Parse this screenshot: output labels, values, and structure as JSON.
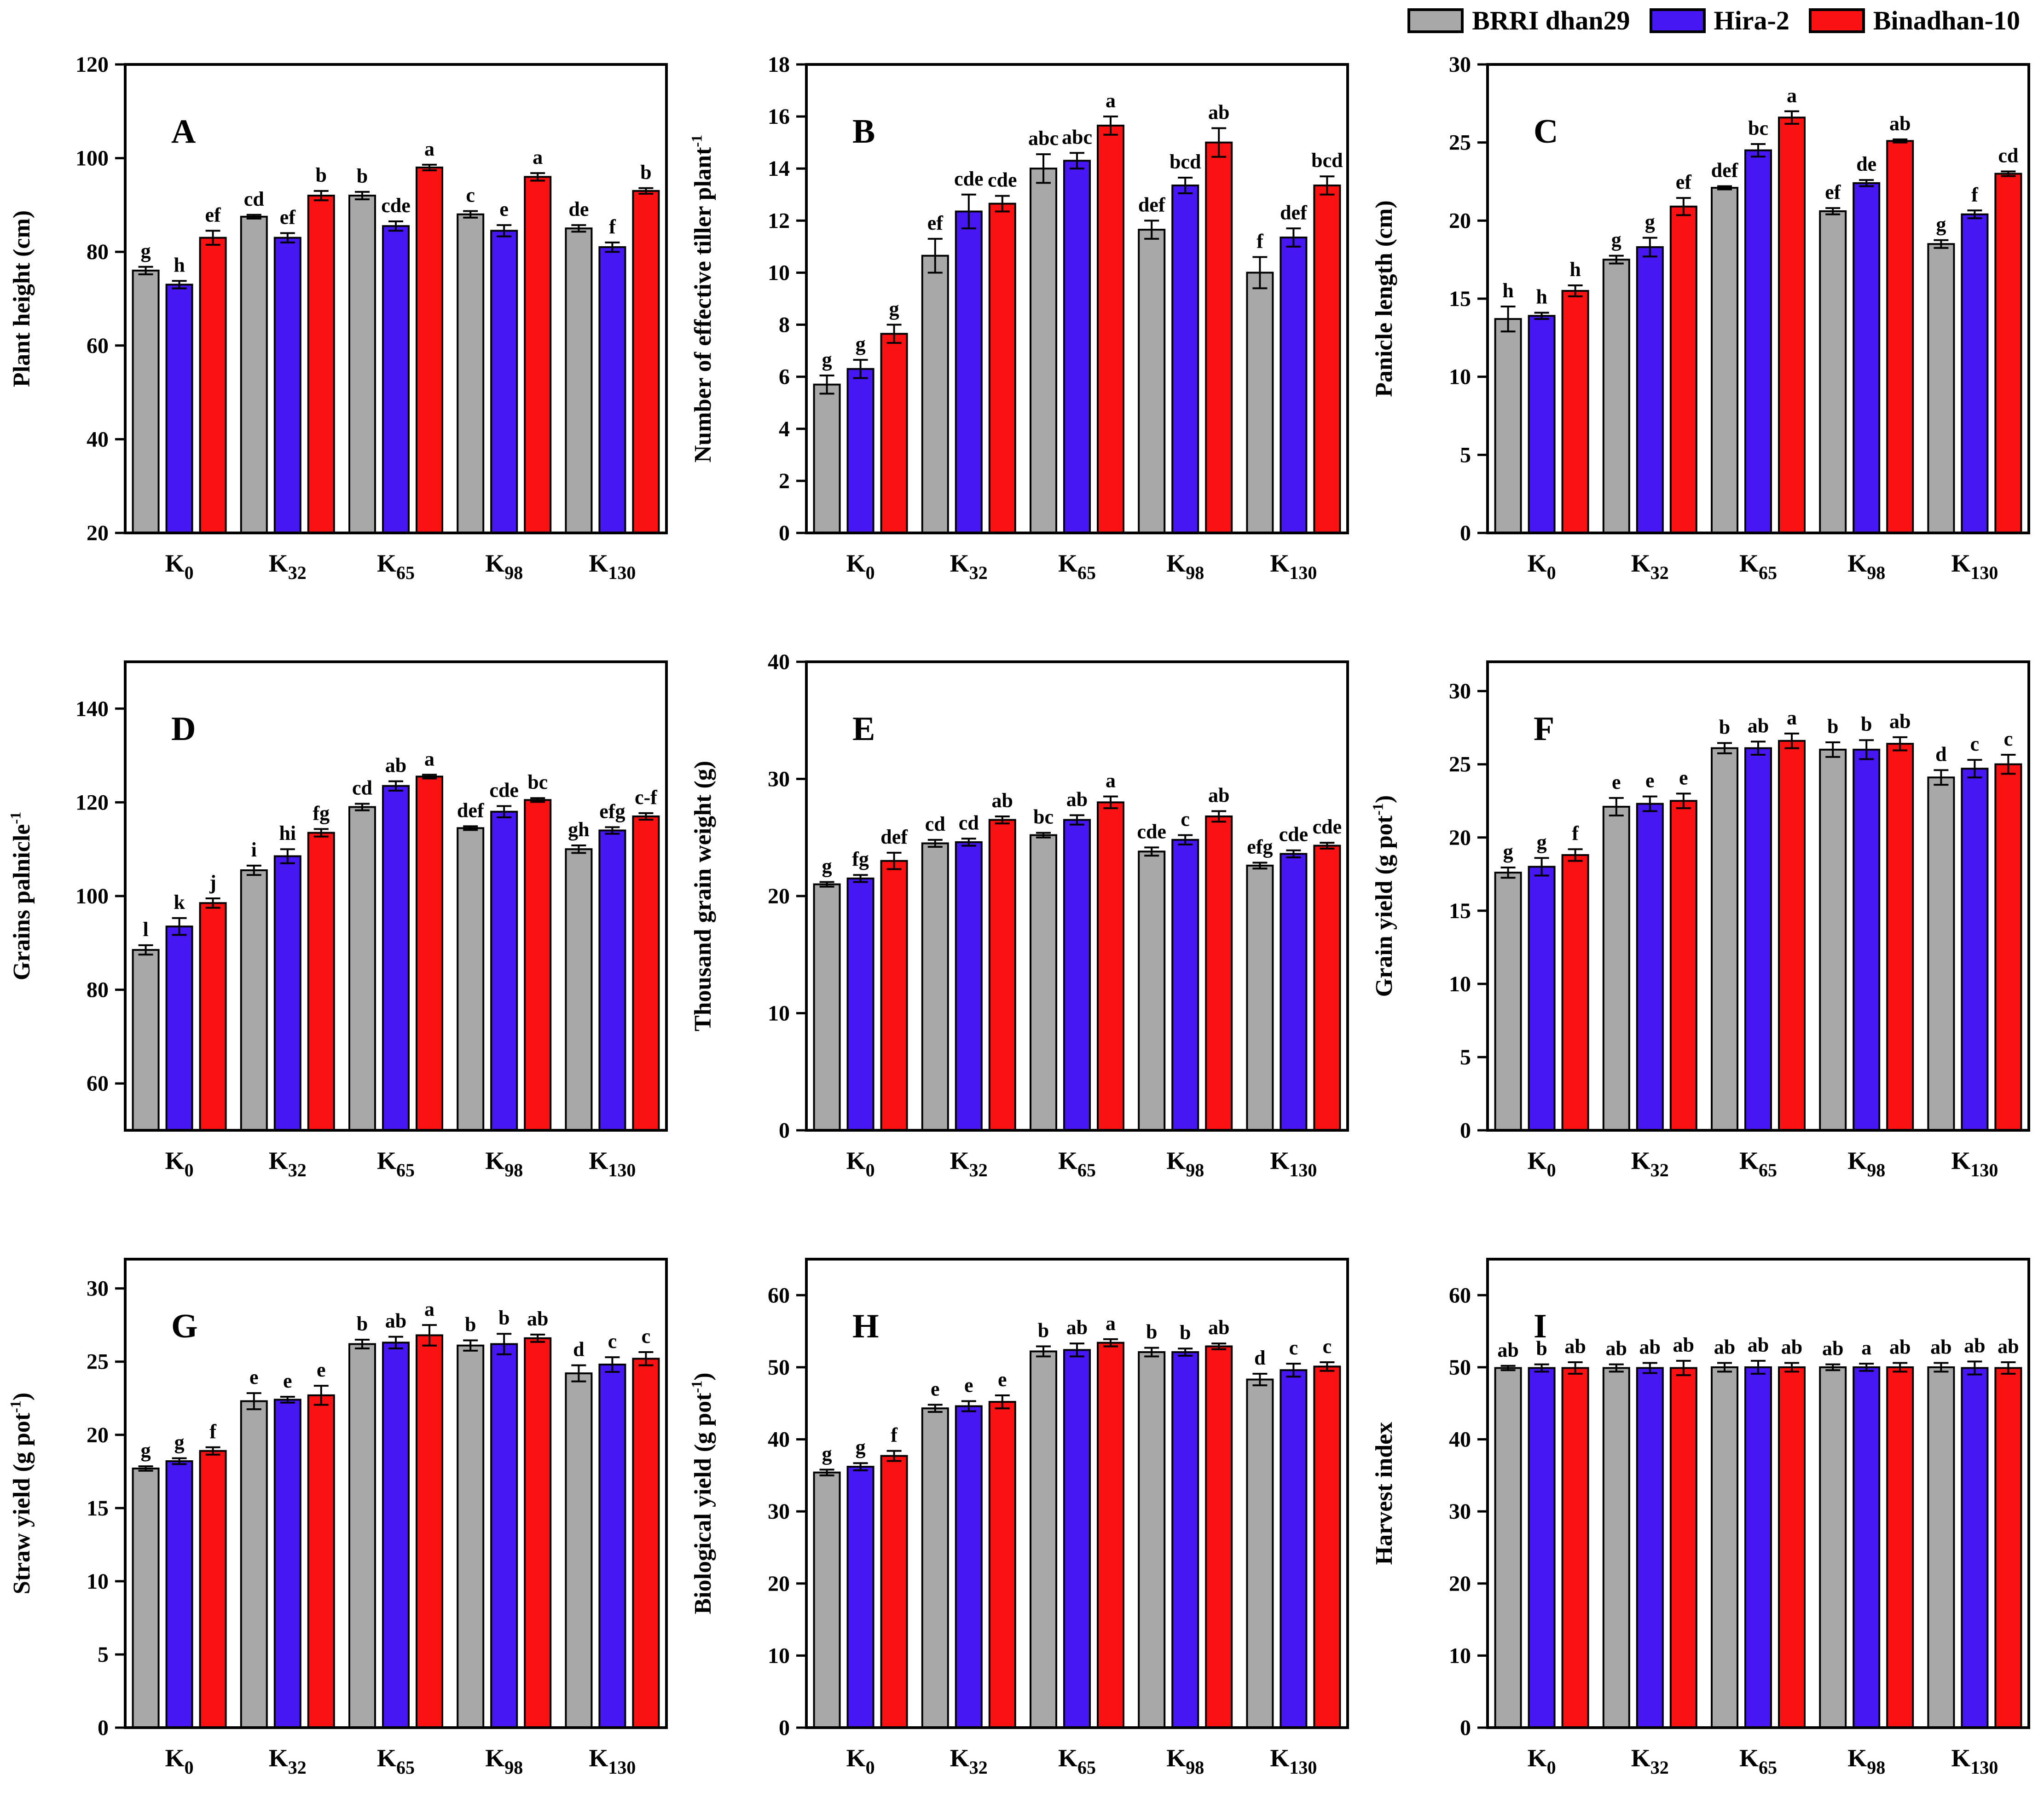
{
  "figure": {
    "legend": [
      {
        "label": "BRRI dhan29",
        "color": "#a8a8a8"
      },
      {
        "label": "Hira-2",
        "color": "#4617f2"
      },
      {
        "label": "Binadhan-10",
        "color": "#fa1111"
      }
    ],
    "legend_position": "top-right",
    "x_categories_display": [
      "K0",
      "K32",
      "K65",
      "K98",
      "K130"
    ]
  },
  "chart_data": [
    {
      "panel": "A",
      "type": "bar",
      "ylabel": "Plant height (cm)",
      "ylim": [
        20,
        120
      ],
      "yticks": [
        20,
        40,
        60,
        80,
        100,
        120
      ],
      "categories": [
        "K0",
        "K32",
        "K65",
        "K98",
        "K130"
      ],
      "series": [
        {
          "name": "BRRI dhan29",
          "color": "#a8a8a8",
          "values": [
            76,
            87.5,
            92,
            88,
            85
          ],
          "errors": [
            0.8,
            0.4,
            0.8,
            0.7,
            0.7
          ],
          "letters": [
            "g",
            "cd",
            "b",
            "c",
            "de"
          ]
        },
        {
          "name": "Hira-2",
          "color": "#4617f2",
          "values": [
            73,
            83,
            85.5,
            84.5,
            81
          ],
          "errors": [
            0.8,
            1.0,
            1.0,
            1.2,
            1.0
          ],
          "letters": [
            "h",
            "ef",
            "cde",
            "e",
            "f"
          ]
        },
        {
          "name": "Binadhan-10",
          "color": "#fa1111",
          "values": [
            83,
            92,
            98,
            96,
            93
          ],
          "errors": [
            1.5,
            1.0,
            0.6,
            0.8,
            0.6
          ],
          "letters": [
            "ef",
            "b",
            "a",
            "a",
            "b"
          ]
        }
      ]
    },
    {
      "panel": "B",
      "type": "bar",
      "ylabel": "Number of effective tiller plant^{-1}",
      "ylim": [
        0,
        18
      ],
      "yticks": [
        0,
        2,
        4,
        6,
        8,
        10,
        12,
        14,
        16,
        18
      ],
      "categories": [
        "K0",
        "K32",
        "K65",
        "K98",
        "K130"
      ],
      "series": [
        {
          "name": "BRRI dhan29",
          "color": "#a8a8a8",
          "values": [
            5.7,
            10.65,
            14.0,
            11.65,
            10.0
          ],
          "errors": [
            0.35,
            0.65,
            0.55,
            0.35,
            0.6
          ],
          "letters": [
            "g",
            "ef",
            "abc",
            "def",
            "f"
          ]
        },
        {
          "name": "Hira-2",
          "color": "#4617f2",
          "values": [
            6.3,
            12.35,
            14.3,
            13.35,
            11.35
          ],
          "errors": [
            0.35,
            0.65,
            0.3,
            0.3,
            0.35
          ],
          "letters": [
            "g",
            "cde",
            "abc",
            "bcd",
            "def"
          ]
        },
        {
          "name": "Binadhan-10",
          "color": "#fa1111",
          "values": [
            7.65,
            12.65,
            15.65,
            15.0,
            13.35
          ],
          "errors": [
            0.35,
            0.3,
            0.35,
            0.55,
            0.35
          ],
          "letters": [
            "g",
            "cde",
            "a",
            "ab",
            "bcd"
          ]
        }
      ]
    },
    {
      "panel": "C",
      "type": "bar",
      "ylabel": "Panicle length (cm)",
      "ylim": [
        0,
        30
      ],
      "yticks": [
        0,
        5,
        10,
        15,
        20,
        25,
        30
      ],
      "categories": [
        "K0",
        "K32",
        "K65",
        "K98",
        "K130"
      ],
      "series": [
        {
          "name": "BRRI dhan29",
          "color": "#a8a8a8",
          "values": [
            13.7,
            17.5,
            22.1,
            20.6,
            18.5
          ],
          "errors": [
            0.8,
            0.25,
            0.1,
            0.2,
            0.25
          ],
          "letters": [
            "h",
            "g",
            "def",
            "ef",
            "g"
          ]
        },
        {
          "name": "Hira-2",
          "color": "#4617f2",
          "values": [
            13.9,
            18.3,
            24.5,
            22.4,
            20.4
          ],
          "errors": [
            0.2,
            0.6,
            0.4,
            0.2,
            0.25
          ],
          "letters": [
            "h",
            "g",
            "bc",
            "de",
            "f"
          ]
        },
        {
          "name": "Binadhan-10",
          "color": "#fa1111",
          "values": [
            15.5,
            20.9,
            26.6,
            25.1,
            23.0
          ],
          "errors": [
            0.35,
            0.55,
            0.4,
            0.1,
            0.15
          ],
          "letters": [
            "h",
            "ef",
            "a",
            "ab",
            "cd"
          ]
        }
      ]
    },
    {
      "panel": "D",
      "type": "bar",
      "ylabel": "Grains palnicle^{-1}",
      "ylim": [
        50,
        150
      ],
      "yticks": [
        60,
        80,
        100,
        120,
        140
      ],
      "categories": [
        "K0",
        "K32",
        "K65",
        "K98",
        "K130"
      ],
      "series": [
        {
          "name": "BRRI dhan29",
          "color": "#a8a8a8",
          "values": [
            88.5,
            105.5,
            119,
            114.5,
            110
          ],
          "errors": [
            1.0,
            1.0,
            0.7,
            0.4,
            0.8
          ],
          "letters": [
            "l",
            "i",
            "cd",
            "def",
            "gh"
          ]
        },
        {
          "name": "Hira-2",
          "color": "#4617f2",
          "values": [
            93.5,
            108.5,
            123.5,
            118,
            114
          ],
          "errors": [
            1.8,
            1.5,
            1.0,
            1.2,
            0.7
          ],
          "letters": [
            "k",
            "hi",
            "ab",
            "cde",
            "efg"
          ]
        },
        {
          "name": "Binadhan-10",
          "color": "#fa1111",
          "values": [
            98.5,
            113.5,
            125.5,
            120.5,
            117
          ],
          "errors": [
            1.0,
            0.8,
            0.4,
            0.4,
            0.7
          ],
          "letters": [
            "j",
            "fg",
            "a",
            "bc",
            "c-f"
          ]
        }
      ]
    },
    {
      "panel": "E",
      "type": "bar",
      "ylabel": "Thousand grain weight (g)",
      "ylim": [
        0,
        40
      ],
      "yticks": [
        0,
        10,
        20,
        30,
        40
      ],
      "categories": [
        "K0",
        "K32",
        "K65",
        "K98",
        "K130"
      ],
      "series": [
        {
          "name": "BRRI dhan29",
          "color": "#a8a8a8",
          "values": [
            21,
            24.5,
            25.2,
            23.8,
            22.6
          ],
          "errors": [
            0.2,
            0.3,
            0.2,
            0.35,
            0.25
          ],
          "letters": [
            "g",
            "cd",
            "bc",
            "cde",
            "efg"
          ]
        },
        {
          "name": "Hira-2",
          "color": "#4617f2",
          "values": [
            21.5,
            24.6,
            26.5,
            24.8,
            23.6
          ],
          "errors": [
            0.3,
            0.3,
            0.4,
            0.4,
            0.3
          ],
          "letters": [
            "fg",
            "cd",
            "ab",
            "c",
            "cde"
          ]
        },
        {
          "name": "Binadhan-10",
          "color": "#fa1111",
          "values": [
            23,
            26.5,
            28,
            26.8,
            24.3
          ],
          "errors": [
            0.7,
            0.3,
            0.5,
            0.45,
            0.25
          ],
          "letters": [
            "def",
            "ab",
            "a",
            "ab",
            "cde"
          ]
        }
      ]
    },
    {
      "panel": "F",
      "type": "bar",
      "ylabel": "Grain yield (g pot^{-1})",
      "ylim": [
        0,
        32
      ],
      "yticks": [
        0,
        5,
        10,
        15,
        20,
        25,
        30
      ],
      "categories": [
        "K0",
        "K32",
        "K65",
        "K98",
        "K130"
      ],
      "series": [
        {
          "name": "BRRI dhan29",
          "color": "#a8a8a8",
          "values": [
            17.6,
            22.1,
            26.1,
            26.0,
            24.1
          ],
          "errors": [
            0.35,
            0.6,
            0.35,
            0.5,
            0.5
          ],
          "letters": [
            "g",
            "e",
            "b",
            "b",
            "d"
          ]
        },
        {
          "name": "Hira-2",
          "color": "#4617f2",
          "values": [
            18.0,
            22.3,
            26.1,
            26.0,
            24.7
          ],
          "errors": [
            0.6,
            0.5,
            0.45,
            0.65,
            0.6
          ],
          "letters": [
            "g",
            "e",
            "ab",
            "b",
            "c"
          ]
        },
        {
          "name": "Binadhan-10",
          "color": "#fa1111",
          "values": [
            18.8,
            22.5,
            26.6,
            26.4,
            25.0
          ],
          "errors": [
            0.4,
            0.5,
            0.5,
            0.45,
            0.65
          ],
          "letters": [
            "f",
            "e",
            "a",
            "ab",
            "c"
          ]
        }
      ]
    },
    {
      "panel": "G",
      "type": "bar",
      "ylabel": "Straw yield (g pot^{-1})",
      "ylim": [
        0,
        32
      ],
      "yticks": [
        0,
        5,
        10,
        15,
        20,
        25,
        30
      ],
      "categories": [
        "K0",
        "K32",
        "K65",
        "K98",
        "K130"
      ],
      "series": [
        {
          "name": "BRRI dhan29",
          "color": "#a8a8a8",
          "values": [
            17.7,
            22.3,
            26.2,
            26.1,
            24.2
          ],
          "errors": [
            0.15,
            0.55,
            0.3,
            0.35,
            0.55
          ],
          "letters": [
            "g",
            "e",
            "b",
            "b",
            "d"
          ]
        },
        {
          "name": "Hira-2",
          "color": "#4617f2",
          "values": [
            18.2,
            22.4,
            26.3,
            26.2,
            24.8
          ],
          "errors": [
            0.2,
            0.2,
            0.4,
            0.7,
            0.5
          ],
          "letters": [
            "g",
            "e",
            "ab",
            "b",
            "c"
          ]
        },
        {
          "name": "Binadhan-10",
          "color": "#fa1111",
          "values": [
            18.9,
            22.7,
            26.8,
            26.6,
            25.2
          ],
          "errors": [
            0.25,
            0.65,
            0.7,
            0.25,
            0.45
          ],
          "letters": [
            "f",
            "e",
            "a",
            "ab",
            "c"
          ]
        }
      ]
    },
    {
      "panel": "H",
      "type": "bar",
      "ylabel": "Biological yield (g pot^{-1})",
      "ylim": [
        0,
        65
      ],
      "yticks": [
        0,
        10,
        20,
        30,
        40,
        50,
        60
      ],
      "categories": [
        "K0",
        "K32",
        "K65",
        "K98",
        "K130"
      ],
      "series": [
        {
          "name": "BRRI dhan29",
          "color": "#a8a8a8",
          "values": [
            35.4,
            44.3,
            52.2,
            52.1,
            48.3
          ],
          "errors": [
            0.4,
            0.5,
            0.7,
            0.6,
            0.8
          ],
          "letters": [
            "g",
            "e",
            "b",
            "b",
            "d"
          ]
        },
        {
          "name": "Hira-2",
          "color": "#4617f2",
          "values": [
            36.2,
            44.6,
            52.4,
            52.1,
            49.6
          ],
          "errors": [
            0.5,
            0.7,
            0.9,
            0.5,
            0.9
          ],
          "letters": [
            "g",
            "e",
            "ab",
            "b",
            "c"
          ]
        },
        {
          "name": "Binadhan-10",
          "color": "#fa1111",
          "values": [
            37.7,
            45.2,
            53.4,
            52.9,
            50.1
          ],
          "errors": [
            0.7,
            0.9,
            0.5,
            0.4,
            0.6
          ],
          "letters": [
            "f",
            "e",
            "a",
            "ab",
            "c"
          ]
        }
      ]
    },
    {
      "panel": "I",
      "type": "bar",
      "ylabel": "Harvest index",
      "ylim": [
        0,
        65
      ],
      "yticks": [
        0,
        10,
        20,
        30,
        40,
        50,
        60
      ],
      "categories": [
        "K0",
        "K32",
        "K65",
        "K98",
        "K130"
      ],
      "series": [
        {
          "name": "BRRI dhan29",
          "color": "#a8a8a8",
          "values": [
            49.9,
            49.9,
            50.0,
            50.0,
            50.0
          ],
          "errors": [
            0.3,
            0.5,
            0.6,
            0.4,
            0.6
          ],
          "letters": [
            "ab",
            "ab",
            "ab",
            "ab",
            "ab"
          ]
        },
        {
          "name": "Hira-2",
          "color": "#4617f2",
          "values": [
            49.9,
            49.9,
            50.0,
            50.0,
            49.9
          ],
          "errors": [
            0.5,
            0.7,
            0.9,
            0.5,
            0.9
          ],
          "letters": [
            "b",
            "ab",
            "ab",
            "a",
            "ab"
          ]
        },
        {
          "name": "Binadhan-10",
          "color": "#fa1111",
          "values": [
            49.9,
            49.9,
            50.0,
            50.0,
            49.9
          ],
          "errors": [
            0.8,
            1.0,
            0.6,
            0.6,
            0.8
          ],
          "letters": [
            "ab",
            "ab",
            "ab",
            "ab",
            "ab"
          ]
        }
      ]
    }
  ]
}
